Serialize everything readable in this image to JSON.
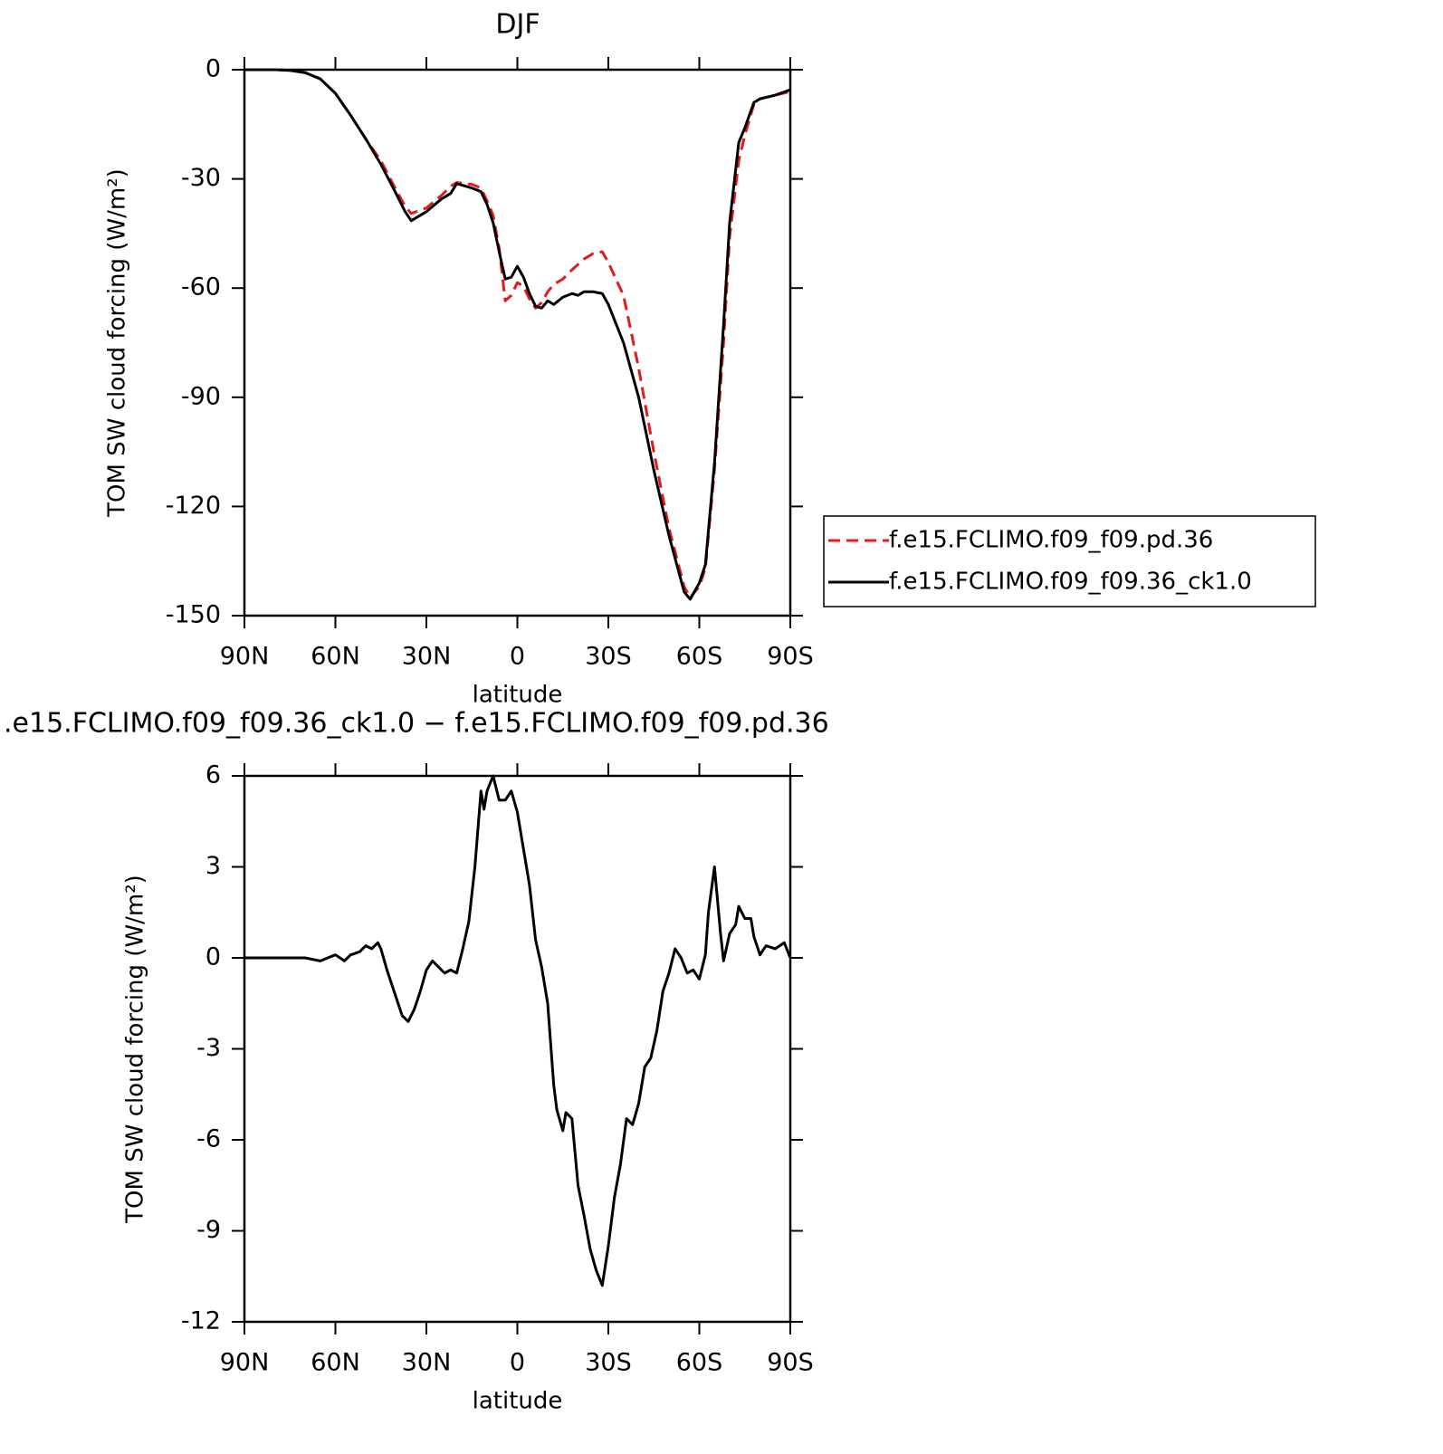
{
  "chart_data": [
    {
      "type": "line",
      "title": "DJF",
      "x_label": "latitude",
      "y_label": "TOM SW cloud forcing (W/m²)",
      "xlim": [
        90,
        -90
      ],
      "xticks": [
        {
          "value": 90,
          "label": "90N"
        },
        {
          "value": 60,
          "label": "60N"
        },
        {
          "value": 30,
          "label": "30N"
        },
        0,
        {
          "value": -30,
          "label": "30S"
        },
        {
          "value": -60,
          "label": "60S"
        },
        {
          "value": -90,
          "label": "90S"
        }
      ],
      "ylim": [
        -150,
        0
      ],
      "yticks": [
        0,
        -30,
        -60,
        -90,
        -120,
        -150
      ],
      "legend": "outside-right",
      "x": [
        90,
        85,
        80,
        75,
        70,
        65,
        60,
        55,
        50,
        45,
        40,
        37,
        35,
        30,
        25,
        22,
        20,
        15,
        12,
        10,
        8,
        6,
        4,
        2,
        0,
        -2,
        -4,
        -6,
        -8,
        -10,
        -12,
        -15,
        -18,
        -20,
        -22,
        -25,
        -28,
        -30,
        -35,
        -40,
        -45,
        -50,
        -55,
        -57,
        -60,
        -62,
        -65,
        -68,
        -70,
        -73,
        -75,
        -78,
        -80,
        -85,
        -90
      ],
      "series": [
        {
          "name": "f.e15.FCLIMO.f09_f09.pd.36",
          "color": "#e41a1c",
          "dashed": true,
          "values": [
            0,
            0,
            0,
            -0.2,
            -0.8,
            -2.5,
            -6.5,
            -12.5,
            -19,
            -25,
            -33,
            -37.5,
            -39.5,
            -38,
            -34.5,
            -32,
            -31,
            -31.5,
            -32.5,
            -36,
            -40,
            -49,
            -63.5,
            -62,
            -58.5,
            -59.5,
            -63,
            -65.5,
            -64,
            -61,
            -59,
            -57.5,
            -55,
            -53.5,
            -52,
            -50.5,
            -50,
            -53,
            -62,
            -82,
            -105,
            -126,
            -142,
            -145,
            -142,
            -137,
            -110,
            -75,
            -46,
            -25,
            -18,
            -9.5,
            -8,
            -7,
            -6
          ]
        },
        {
          "name": "f.e15.FCLIMO.f09_f09.36_ck1.0",
          "color": "#000000",
          "dashed": false,
          "values": [
            0,
            0,
            0,
            -0.2,
            -0.8,
            -2.5,
            -6.5,
            -12.5,
            -19,
            -26,
            -34,
            -39,
            -41.5,
            -39,
            -35.5,
            -34,
            -31.3,
            -32.5,
            -33.5,
            -37,
            -42,
            -50,
            -57.5,
            -57,
            -54,
            -57,
            -61.5,
            -65,
            -65.5,
            -63.5,
            -64.5,
            -62.5,
            -61.5,
            -62,
            -61,
            -61,
            -61.5,
            -64.5,
            -75,
            -90,
            -110,
            -128,
            -143.5,
            -145.5,
            -141,
            -136,
            -108,
            -70,
            -42,
            -20,
            -16,
            -9,
            -8,
            -7,
            -5.5
          ]
        }
      ]
    },
    {
      "type": "line",
      "title": ".e15.FCLIMO.f09_f09.36_ck1.0 − f.e15.FCLIMO.f09_f09.pd.36",
      "x_label": "latitude",
      "y_label": "TOM SW cloud forcing (W/m²)",
      "xlim": [
        90,
        -90
      ],
      "xticks": [
        {
          "value": 90,
          "label": "90N"
        },
        {
          "value": 60,
          "label": "60N"
        },
        {
          "value": 30,
          "label": "30N"
        },
        0,
        {
          "value": -30,
          "label": "30S"
        },
        {
          "value": -60,
          "label": "60S"
        },
        {
          "value": -90,
          "label": "90S"
        }
      ],
      "ylim": [
        -12,
        6
      ],
      "yticks": [
        6,
        3,
        0,
        -3,
        -6,
        -9,
        -12
      ],
      "color": "#000000",
      "x": [
        90,
        80,
        70,
        65,
        60,
        57,
        55,
        52,
        50,
        48,
        46,
        45,
        43,
        40,
        38,
        36,
        34,
        32,
        30,
        28,
        26,
        24,
        22,
        20,
        18,
        16,
        14,
        12,
        11,
        10,
        8,
        6,
        4,
        2,
        0,
        -2,
        -4,
        -6,
        -8,
        -10,
        -12,
        -13,
        -15,
        -16,
        -18,
        -20,
        -22,
        -24,
        -26,
        -28,
        -30,
        -32,
        -34,
        -36,
        -38,
        -40,
        -42,
        -44,
        -46,
        -48,
        -50,
        -52,
        -54,
        -56,
        -58,
        -60,
        -62,
        -63,
        -65,
        -67,
        -68,
        -70,
        -72,
        -73,
        -75,
        -77,
        -78,
        -80,
        -82,
        -85,
        -88,
        -90
      ],
      "values": [
        0,
        0,
        0,
        -0.1,
        0.1,
        -0.1,
        0.1,
        0.2,
        0.4,
        0.3,
        0.5,
        0.3,
        -0.4,
        -1.3,
        -1.9,
        -2.1,
        -1.7,
        -1.1,
        -0.4,
        -0.1,
        -0.3,
        -0.5,
        -0.4,
        -0.5,
        0.3,
        1.2,
        3,
        5.5,
        4.9,
        5.5,
        6,
        5.2,
        5.2,
        5.5,
        4.8,
        3.6,
        2.4,
        0.6,
        -0.3,
        -1.5,
        -4.2,
        -5,
        -5.7,
        -5.1,
        -5.3,
        -7.5,
        -8.5,
        -9.6,
        -10.3,
        -10.8,
        -9.5,
        -7.9,
        -6.8,
        -5.3,
        -5.5,
        -4.8,
        -3.6,
        -3.3,
        -2.4,
        -1.1,
        -0.5,
        0.3,
        0,
        -0.5,
        -0.4,
        -0.7,
        0.1,
        1.5,
        3,
        0.8,
        -0.1,
        0.8,
        1.1,
        1.7,
        1.3,
        1.3,
        0.7,
        0.1,
        0.4,
        0.3,
        0.5,
        0
      ]
    }
  ]
}
